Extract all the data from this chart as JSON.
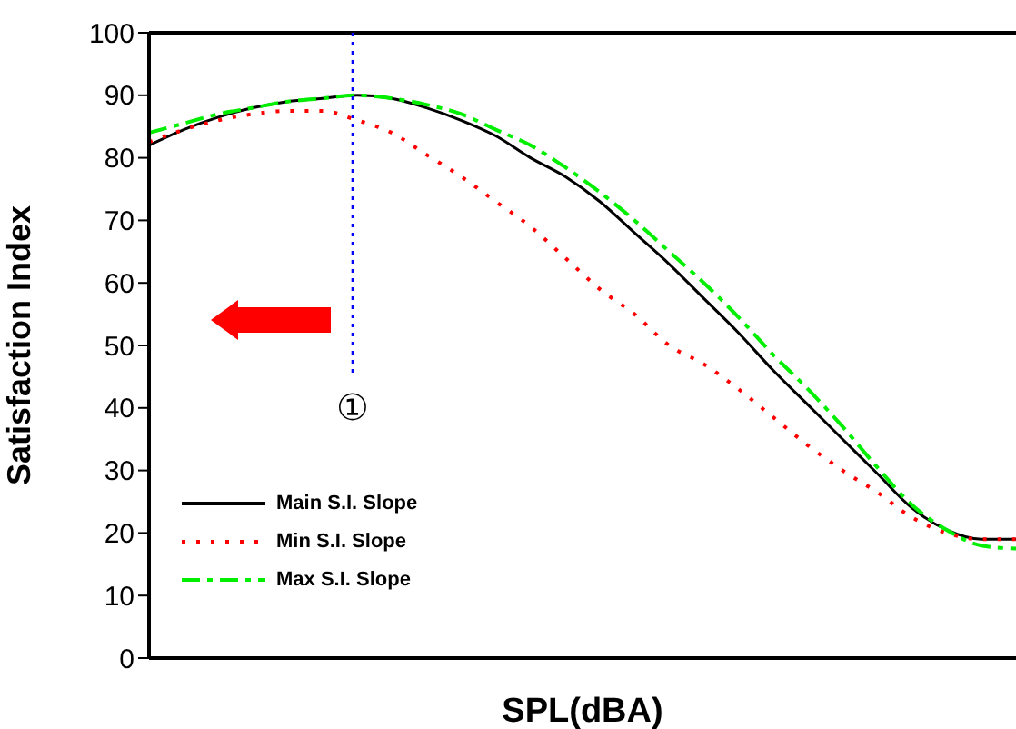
{
  "chart_data": {
    "type": "line",
    "xlabel": "SPL(dBA)",
    "ylabel": "Satisfaction Index",
    "categories": [
      null,
      null,
      null,
      null,
      null,
      null,
      null,
      null,
      null,
      null,
      null,
      null,
      null,
      null,
      null,
      null,
      null,
      null,
      null,
      null,
      null,
      null,
      null,
      null,
      null,
      null
    ],
    "series": [
      {
        "name": "Main S.I. Slope",
        "color": "#000000",
        "line_style": "solid",
        "values": [
          82,
          84.5,
          86.5,
          88,
          89,
          89.5,
          90,
          89.5,
          88,
          86,
          83.5,
          80,
          77,
          73,
          68,
          63,
          57.5,
          52,
          46,
          40.5,
          35,
          29.5,
          24,
          20.5,
          19,
          19
        ]
      },
      {
        "name": "Min S.I. Slope",
        "color": "#ff0000",
        "line_style": "dotted",
        "values": [
          82.5,
          84.5,
          86,
          87,
          87.5,
          87.5,
          86,
          84,
          80.5,
          77,
          73,
          69,
          64,
          59,
          55,
          50,
          47,
          43,
          38.5,
          34,
          30,
          26.5,
          22.5,
          20,
          19,
          19
        ]
      },
      {
        "name": "Max S.I. Slope",
        "color": "#00ee00",
        "line_style": "dashed",
        "values": [
          84,
          85.5,
          87,
          88,
          89,
          89.5,
          90,
          89.5,
          88.5,
          87,
          84.5,
          82,
          78.5,
          74.5,
          70,
          65,
          60,
          54.5,
          48.5,
          43,
          37,
          30.5,
          24.5,
          20.5,
          18,
          17.5
        ]
      }
    ],
    "ylim": [
      0,
      100
    ],
    "yticks": [
      0,
      10,
      20,
      30,
      40,
      50,
      60,
      70,
      80,
      90,
      100
    ],
    "tick_labels": "y",
    "grid": false,
    "legend": "bottom left",
    "marker": "none",
    "annotations": [
      "①"
    ]
  }
}
